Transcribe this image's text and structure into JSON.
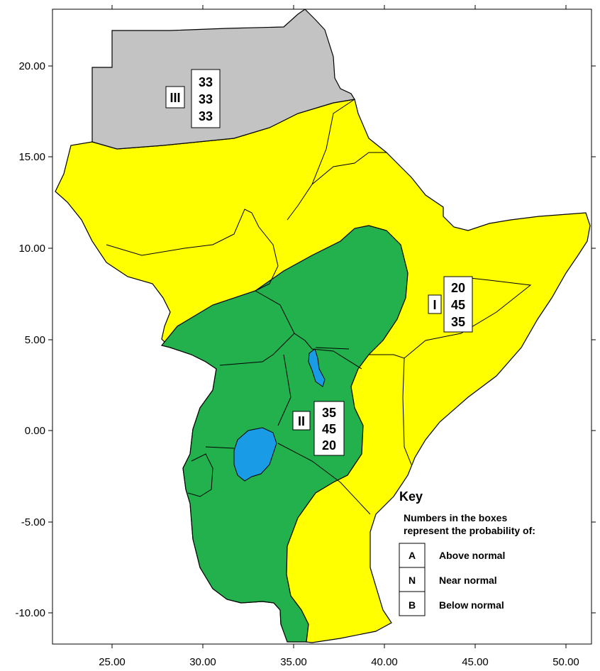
{
  "colors": {
    "above_normal_zone": "#ffff00",
    "near_normal_zone": "#22b14c",
    "climatology_zone": "#c3c3c3",
    "water": "#1a9be6",
    "background": "#ffffff",
    "border": "#000000"
  },
  "axes": {
    "x_ticks": [
      "25.00",
      "30.00",
      "35.00",
      "40.00",
      "45.00",
      "50.00"
    ],
    "y_ticks": [
      "20.00",
      "15.00",
      "10.00",
      "5.00",
      "0.00",
      "-5.00",
      "-10.00"
    ]
  },
  "zones": [
    {
      "id": "I",
      "label": "I",
      "probabilities": [
        "20",
        "45",
        "35"
      ]
    },
    {
      "id": "II",
      "label": "II",
      "probabilities": [
        "35",
        "45",
        "20"
      ]
    },
    {
      "id": "III",
      "label": "III",
      "probabilities": [
        "33",
        "33",
        "33"
      ]
    }
  ],
  "key": {
    "title": "Key",
    "description_line1": "Numbers in the boxes",
    "description_line2": "represent the probability of:",
    "entries": [
      {
        "letter": "A",
        "text": "Above normal"
      },
      {
        "letter": "N",
        "text": "Near normal"
      },
      {
        "letter": "B",
        "text": "Below normal"
      }
    ]
  }
}
